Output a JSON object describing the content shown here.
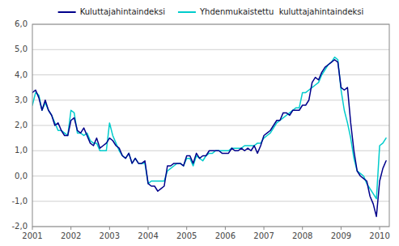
{
  "chart_data": {
    "type": "line",
    "x": [
      2001,
      2001.0833,
      2001.1667,
      2001.25,
      2001.3333,
      2001.4167,
      2001.5,
      2001.5833,
      2001.6667,
      2001.75,
      2001.8333,
      2001.9167,
      2002,
      2002.0833,
      2002.1667,
      2002.25,
      2002.3333,
      2002.4167,
      2002.5,
      2002.5833,
      2002.6667,
      2002.75,
      2002.8333,
      2002.9167,
      2003,
      2003.0833,
      2003.1667,
      2003.25,
      2003.3333,
      2003.4167,
      2003.5,
      2003.5833,
      2003.6667,
      2003.75,
      2003.8333,
      2003.9167,
      2004,
      2004.0833,
      2004.1667,
      2004.25,
      2004.3333,
      2004.4167,
      2004.5,
      2004.5833,
      2004.6667,
      2004.75,
      2004.8333,
      2004.9167,
      2005,
      2005.0833,
      2005.1667,
      2005.25,
      2005.3333,
      2005.4167,
      2005.5,
      2005.5833,
      2005.6667,
      2005.75,
      2005.8333,
      2005.9167,
      2006,
      2006.0833,
      2006.1667,
      2006.25,
      2006.3333,
      2006.4167,
      2006.5,
      2006.5833,
      2006.6667,
      2006.75,
      2006.8333,
      2006.9167,
      2007,
      2007.0833,
      2007.1667,
      2007.25,
      2007.3333,
      2007.4167,
      2007.5,
      2007.5833,
      2007.6667,
      2007.75,
      2007.8333,
      2007.9167,
      2008,
      2008.0833,
      2008.1667,
      2008.25,
      2008.3333,
      2008.4167,
      2008.5,
      2008.5833,
      2008.6667,
      2008.75,
      2008.8333,
      2008.9167,
      2009,
      2009.0833,
      2009.1667,
      2009.25,
      2009.3333,
      2009.4167,
      2009.5,
      2009.5833,
      2009.6667,
      2009.75,
      2009.8333,
      2009.9167,
      2010,
      2010.0833,
      2010.1667
    ],
    "series": [
      {
        "name": "Yhdenmukaistettu  kuluttajahintaindeksi",
        "color": "#00CCCC",
        "values": [
          2.8,
          3.3,
          3.2,
          2.6,
          2.9,
          2.6,
          2.4,
          2.1,
          1.8,
          1.8,
          1.7,
          1.6,
          2.6,
          2.5,
          1.7,
          1.7,
          1.6,
          1.7,
          1.4,
          1.3,
          1.3,
          1.0,
          1.0,
          1.0,
          2.1,
          1.6,
          1.3,
          1.0,
          0.8,
          0.7,
          0.9,
          0.5,
          0.7,
          0.5,
          0.5,
          0.5,
          -0.3,
          -0.2,
          -0.2,
          -0.2,
          -0.2,
          -0.2,
          0.2,
          0.3,
          0.4,
          0.5,
          0.5,
          0.4,
          0.7,
          0.7,
          0.4,
          0.8,
          0.7,
          0.6,
          0.8,
          0.9,
          0.9,
          1.0,
          1.0,
          1.0,
          1.0,
          1.0,
          1.1,
          1.1,
          1.1,
          1.1,
          1.2,
          1.2,
          1.2,
          1.2,
          1.3,
          1.3,
          1.5,
          1.6,
          1.7,
          1.9,
          2.1,
          2.2,
          2.3,
          2.4,
          2.5,
          2.6,
          2.7,
          2.7,
          3.3,
          3.3,
          3.4,
          3.5,
          3.6,
          3.7,
          4.0,
          4.2,
          4.4,
          4.5,
          4.7,
          4.6,
          3.4,
          2.6,
          2.1,
          1.5,
          0.7,
          0.2,
          0.1,
          0.0,
          -0.3,
          -0.5,
          -0.7,
          -0.9,
          1.2,
          1.3,
          1.5
        ]
      },
      {
        "name": "Kuluttajahintaindeksi",
        "color": "#00008B",
        "values": [
          3.3,
          3.4,
          3.1,
          2.6,
          3.0,
          2.6,
          2.4,
          2.0,
          2.1,
          1.8,
          1.6,
          1.6,
          2.2,
          2.3,
          1.8,
          1.7,
          1.9,
          1.6,
          1.3,
          1.2,
          1.5,
          1.1,
          1.2,
          1.3,
          1.5,
          1.4,
          1.2,
          1.1,
          0.8,
          0.7,
          0.9,
          0.5,
          0.7,
          0.5,
          0.5,
          0.6,
          -0.3,
          -0.4,
          -0.4,
          -0.6,
          -0.5,
          -0.4,
          0.4,
          0.4,
          0.5,
          0.5,
          0.5,
          0.4,
          0.8,
          0.8,
          0.5,
          0.9,
          0.7,
          0.8,
          0.8,
          1.0,
          1.0,
          1.0,
          1.0,
          0.9,
          0.9,
          0.9,
          1.1,
          1.0,
          1.0,
          1.1,
          1.0,
          1.1,
          1.0,
          1.2,
          0.9,
          1.2,
          1.6,
          1.7,
          1.8,
          2.0,
          2.2,
          2.2,
          2.5,
          2.5,
          2.4,
          2.6,
          2.6,
          2.6,
          2.8,
          2.8,
          3.0,
          3.7,
          3.9,
          3.8,
          4.1,
          4.3,
          4.4,
          4.5,
          4.6,
          4.5,
          3.5,
          3.4,
          3.5,
          2.1,
          1.0,
          0.2,
          0.0,
          -0.1,
          -0.2,
          -0.8,
          -1.1,
          -1.6,
          -0.2,
          0.3,
          0.6
        ]
      }
    ],
    "xlim": [
      2001,
      2010.25
    ],
    "xticks": [
      2001,
      2002,
      2003,
      2004,
      2005,
      2006,
      2007,
      2008,
      2009,
      2010
    ],
    "ylim": [
      -2.0,
      6.0
    ],
    "yticks": [
      {
        "value": -2.0,
        "label": "-2,0"
      },
      {
        "value": -1.0,
        "label": "-1,0"
      },
      {
        "value": 0.0,
        "label": "0,0"
      },
      {
        "value": 1.0,
        "label": "1,0"
      },
      {
        "value": 2.0,
        "label": "2,0"
      },
      {
        "value": 3.0,
        "label": "3,0"
      },
      {
        "value": 4.0,
        "label": "4,0"
      },
      {
        "value": 5.0,
        "label": "5,0"
      },
      {
        "value": 6.0,
        "label": "6,0"
      }
    ],
    "grid": true,
    "legend": "top"
  }
}
